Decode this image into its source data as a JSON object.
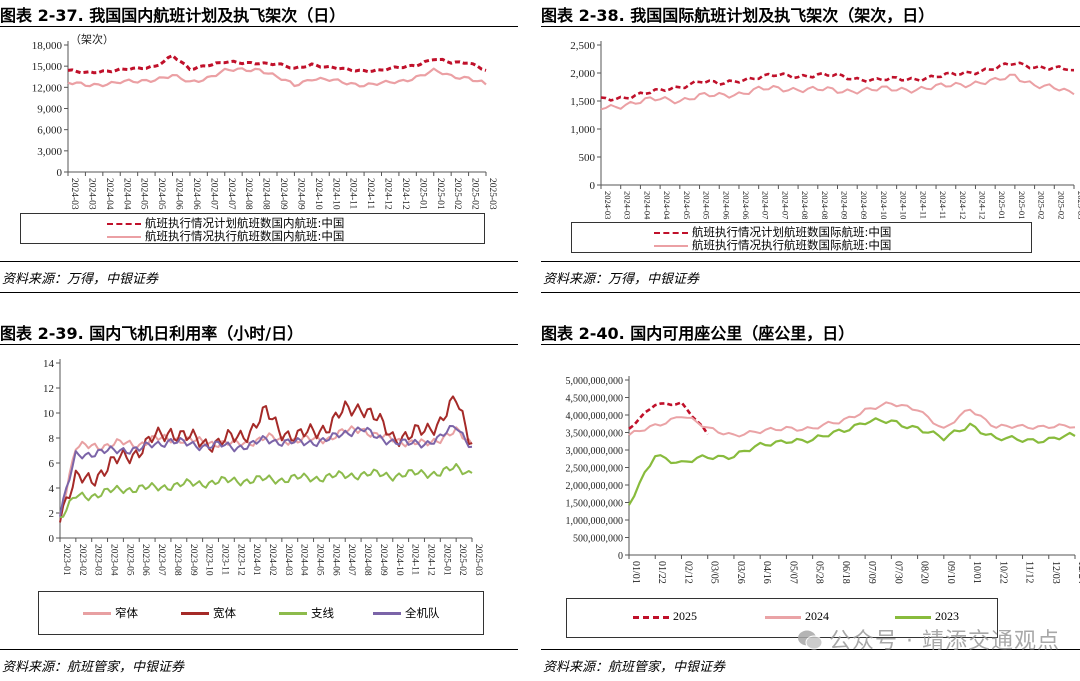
{
  "charts": [
    {
      "title": "图表 2-37. 我国国内航班计划及执飞架次（日）",
      "source": "资料来源：万得，中银证券",
      "unit_label": "（架次）",
      "legend": [
        "航班执行情况计划航班数国内航班:中国",
        "航班执行情况执行航班数国内航班:中国"
      ]
    },
    {
      "title": "图表 2-38. 我国国际航班计划及执飞架次（架次，日）",
      "source": "资料来源：万得，中银证券",
      "legend": [
        "航班执行情况计划航班数国际航班:中国",
        "航班执行情况执行航班数国际航班:中国"
      ]
    },
    {
      "title": "图表 2-39. 国内飞机日利用率（小时/日）",
      "source": "资料来源：航班管家，中银证券",
      "legend": [
        "窄体",
        "宽体",
        "支线",
        "全机队"
      ]
    },
    {
      "title": "图表 2-40. 国内可用座公里（座公里，日）",
      "source": "资料来源：航班管家，中银证券",
      "legend": [
        "2025",
        "2024",
        "2023"
      ]
    }
  ],
  "watermark": "公众号 · 靖添交通观点",
  "colors": {
    "planned": "#c0102a",
    "executed": "#eba0a4",
    "narrow": "#e8a0a2",
    "wide": "#a52a28",
    "regional": "#8dbb4c",
    "fleet": "#7b64a8",
    "y2025": "#c0102a",
    "y2024": "#eaa3a6",
    "y2023": "#88bb3c"
  },
  "chart_data": [
    {
      "type": "line",
      "ylim": [
        0,
        18000
      ],
      "yticks": [
        "0",
        "3,000",
        "6,000",
        "9,000",
        "12,000",
        "15,000",
        "18,000"
      ],
      "x": [
        "2024-03",
        "2024-03",
        "2024-04",
        "2024-04",
        "2024-05",
        "2024-05",
        "2024-06",
        "2024-06",
        "2024-07",
        "2024-07",
        "2024-08",
        "2024-08",
        "2024-09",
        "2024-09",
        "2024-10",
        "2024-10",
        "2024-11",
        "2024-11",
        "2024-12",
        "2024-12",
        "2025-01",
        "2025-01",
        "2025-02",
        "2025-02",
        "2025-03"
      ],
      "series": [
        {
          "name": "航班执行情况计划航班数国内航班:中国",
          "style": "dashed",
          "values": [
            14400,
            14000,
            14300,
            14500,
            14600,
            15000,
            16500,
            14500,
            15200,
            15600,
            15400,
            15500,
            15300,
            14600,
            15300,
            14800,
            14500,
            14400,
            14400,
            14800,
            15200,
            16000,
            15500,
            15600,
            14400
          ]
        },
        {
          "name": "航班执行情况执行航班数国内航班:中国",
          "style": "solid",
          "values": [
            12600,
            12300,
            12500,
            12700,
            12800,
            13200,
            13600,
            12700,
            13400,
            14300,
            14500,
            14600,
            13400,
            12300,
            13300,
            13000,
            12600,
            12400,
            12500,
            12800,
            13500,
            14300,
            13600,
            13400,
            12400
          ]
        }
      ]
    },
    {
      "type": "line",
      "ylim": [
        0,
        2500
      ],
      "yticks": [
        "0",
        "500",
        "1,000",
        "1,500",
        "2,000",
        "2,500"
      ],
      "x": [
        "2024-03",
        "2024-03",
        "2024-04",
        "2024-04",
        "2024-05",
        "2024-05",
        "2024-06",
        "2024-06",
        "2024-07",
        "2024-07",
        "2024-08",
        "2024-08",
        "2024-09",
        "2024-09",
        "2024-10",
        "2024-10",
        "2024-11",
        "2024-11",
        "2024-12",
        "2024-12",
        "2025-01",
        "2025-01",
        "2025-02",
        "2025-02",
        "2025-03"
      ],
      "series": [
        {
          "name": "航班执行情况计划航班数国际航班:中国",
          "style": "dashed",
          "values": [
            1520,
            1560,
            1620,
            1680,
            1760,
            1850,
            1800,
            1880,
            1920,
            1960,
            1950,
            1960,
            1950,
            1900,
            1870,
            1890,
            1900,
            1930,
            1980,
            2030,
            2080,
            2170,
            2120,
            2080,
            2050
          ]
        },
        {
          "name": "航班执行情况执行航班数国际航班:中国",
          "style": "solid",
          "values": [
            1380,
            1430,
            1480,
            1540,
            1520,
            1580,
            1600,
            1640,
            1700,
            1720,
            1720,
            1700,
            1680,
            1700,
            1700,
            1710,
            1720,
            1740,
            1790,
            1830,
            1850,
            1950,
            1800,
            1720,
            1620
          ]
        }
      ]
    },
    {
      "type": "line",
      "ylim": [
        0,
        14
      ],
      "yticks": [
        "0",
        "2",
        "4",
        "6",
        "8",
        "10",
        "12",
        "14"
      ],
      "x": [
        "2023-01",
        "2023-02",
        "2023-03",
        "2023-04",
        "2023-05",
        "2023-06",
        "2023-07",
        "2023-08",
        "2023-09",
        "2023-10",
        "2023-11",
        "2023-12",
        "2024-01",
        "2024-02",
        "2024-03",
        "2024-04",
        "2024-05",
        "2024-06",
        "2024-07",
        "2024-08",
        "2024-09",
        "2024-10",
        "2024-11",
        "2024-12",
        "2025-01",
        "2025-02",
        "2025-03"
      ],
      "series": [
        {
          "name": "窄体",
          "values": [
            1.8,
            7.2,
            7.4,
            7.4,
            7.6,
            7.5,
            7.9,
            8.0,
            7.8,
            7.7,
            7.6,
            7.5,
            7.7,
            8.0,
            7.9,
            7.8,
            7.9,
            8.0,
            8.5,
            8.8,
            8.1,
            8.0,
            7.6,
            7.5,
            8.0,
            8.5,
            7.5
          ]
        },
        {
          "name": "宽体",
          "values": [
            2.0,
            4.6,
            4.8,
            5.6,
            6.5,
            7.0,
            8.0,
            8.6,
            8.0,
            7.7,
            7.6,
            8.0,
            8.6,
            10.0,
            8.6,
            8.0,
            8.6,
            9.0,
            10.2,
            10.6,
            9.4,
            8.2,
            8.1,
            8.6,
            9.4,
            11.0,
            7.6
          ]
        },
        {
          "name": "支线",
          "values": [
            1.6,
            3.3,
            3.4,
            3.7,
            3.9,
            4.0,
            4.0,
            4.2,
            4.3,
            4.4,
            4.5,
            4.6,
            4.6,
            4.7,
            4.7,
            4.8,
            4.8,
            4.9,
            5.0,
            5.1,
            5.1,
            5.0,
            5.1,
            5.2,
            5.2,
            5.6,
            5.2
          ]
        },
        {
          "name": "全机队",
          "values": [
            1.9,
            6.6,
            6.8,
            6.9,
            7.1,
            7.1,
            7.5,
            7.8,
            7.5,
            7.4,
            7.4,
            7.3,
            7.4,
            7.9,
            7.7,
            7.6,
            7.7,
            7.9,
            8.4,
            8.8,
            8.0,
            7.8,
            7.5,
            7.6,
            8.0,
            9.0,
            7.3
          ]
        }
      ]
    },
    {
      "type": "line",
      "ylim": [
        0,
        5000000000
      ],
      "yticks": [
        "0",
        "500,000,000",
        "1,000,000,000",
        "1,500,000,000",
        "2,000,000,000",
        "2,500,000,000",
        "3,000,000,000",
        "3,500,000,000",
        "4,000,000,000",
        "4,500,000,000",
        "5,000,000,000"
      ],
      "x": [
        "01/01",
        "01/22",
        "02/12",
        "03/05",
        "03/26",
        "04/16",
        "05/07",
        "05/28",
        "06/18",
        "07/09",
        "07/30",
        "08/20",
        "09/10",
        "10/01",
        "10/22",
        "11/12",
        "12/03",
        "12/24"
      ],
      "series": [
        {
          "name": "2025",
          "style": "dashed",
          "values": [
            3600000000,
            4300000000,
            4350000000,
            3450000000,
            null,
            null,
            null,
            null,
            null,
            null,
            null,
            null,
            null,
            null,
            null,
            null,
            null,
            null
          ]
        },
        {
          "name": "2024",
          "style": "solid",
          "values": [
            3400000000,
            3700000000,
            4000000000,
            3600000000,
            3450000000,
            3500000000,
            3650000000,
            3600000000,
            3800000000,
            4150000000,
            4300000000,
            4200000000,
            3550000000,
            4200000000,
            3650000000,
            3650000000,
            3700000000,
            3650000000
          ]
        },
        {
          "name": "2023",
          "style": "solid",
          "values": [
            1400000000,
            2900000000,
            2600000000,
            2800000000,
            2850000000,
            3100000000,
            3300000000,
            3250000000,
            3550000000,
            3800000000,
            3800000000,
            3650000000,
            3300000000,
            3750000000,
            3300000000,
            3300000000,
            3300000000,
            3400000000
          ]
        }
      ]
    }
  ]
}
